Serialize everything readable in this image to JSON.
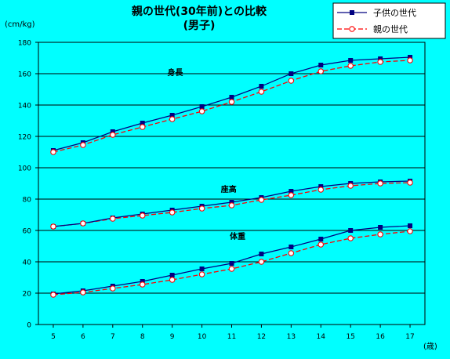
{
  "chart_data": {
    "type": "line",
    "title_line1": "親の世代(30年前)との比較",
    "title_line2": "(男子)",
    "ylabel": "(cm/kg)",
    "xlabel": "(歳)",
    "ylim": [
      0,
      180
    ],
    "yticks": [
      0,
      20,
      40,
      60,
      80,
      100,
      120,
      140,
      160,
      180
    ],
    "x": [
      5,
      6,
      7,
      8,
      9,
      10,
      11,
      12,
      13,
      14,
      15,
      16,
      17
    ],
    "grid": "horizontal",
    "legend_position": "top-right",
    "colors": {
      "child": "#000080",
      "parent": "#FF0000"
    },
    "legend": [
      {
        "key": "child",
        "label": "子供の世代",
        "marker": "filled-square",
        "line": "solid"
      },
      {
        "key": "parent",
        "label": "親の世代",
        "marker": "open-circle",
        "line": "dashed"
      }
    ],
    "groups": [
      {
        "label": "身長",
        "label_at": [
          9.1,
          159
        ],
        "child": [
          111,
          116,
          123,
          128.5,
          133.5,
          139,
          145,
          152,
          160,
          165.5,
          168.5,
          169.5,
          170.5
        ],
        "parent": [
          110,
          114.5,
          121,
          126,
          131,
          136,
          142,
          148.5,
          155.5,
          161.5,
          165,
          167.5,
          168.5
        ]
      },
      {
        "label": "座高",
        "label_at": [
          10.9,
          84.5
        ],
        "child": [
          62.5,
          64.5,
          68,
          70.5,
          73,
          75.5,
          78,
          81,
          85,
          88,
          90,
          91,
          91.5
        ],
        "parent": [
          62.5,
          64.5,
          67.5,
          69.5,
          71.5,
          74,
          76,
          79.5,
          82.5,
          86,
          88.5,
          90,
          90.5
        ]
      },
      {
        "label": "体重",
        "label_at": [
          11.2,
          54.5
        ],
        "child": [
          19.5,
          21.5,
          24.5,
          27.5,
          31.5,
          35.5,
          39,
          45,
          49.5,
          54.5,
          60,
          62,
          63
        ],
        "parent": [
          19,
          20.5,
          23,
          25.5,
          28.5,
          32,
          35.5,
          40,
          45.5,
          51,
          55,
          57.5,
          59.5
        ]
      }
    ]
  }
}
